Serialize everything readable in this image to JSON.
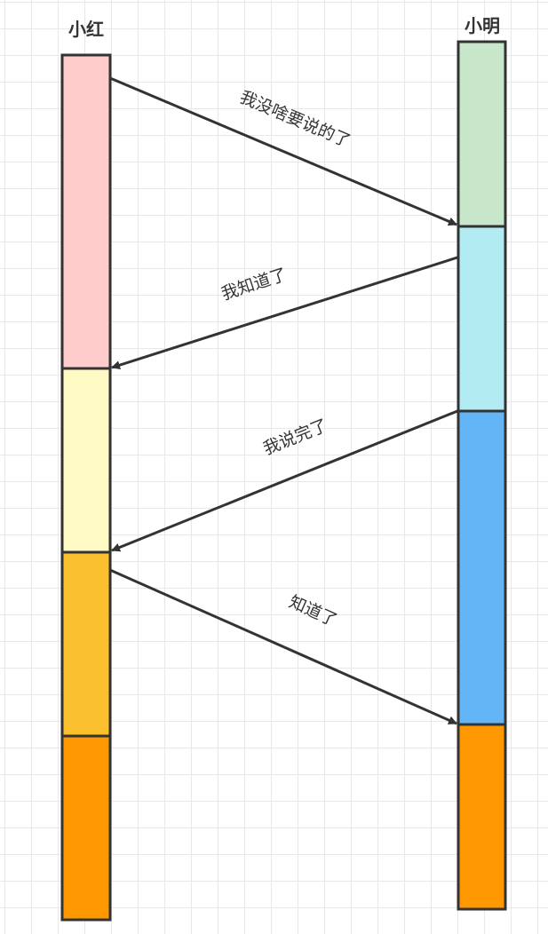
{
  "participants": [
    {
      "name": "小红",
      "segment_colors": [
        "#FFCCCC",
        "#FFF9C4",
        "#FBC02D",
        "#FF9800"
      ]
    },
    {
      "name": "小明",
      "segment_colors": [
        "#C8E6C9",
        "#B2EBF2",
        "#64B5F6",
        "#FF9800"
      ]
    }
  ],
  "messages": [
    {
      "text": "我没啥要说的了",
      "from": "小红",
      "to": "小明"
    },
    {
      "text": "我知道了",
      "from": "小明",
      "to": "小红"
    },
    {
      "text": "我说完了",
      "from": "小明",
      "to": "小红"
    },
    {
      "text": "知道了",
      "from": "小红",
      "to": "小明"
    }
  ],
  "line_color": "#333333"
}
